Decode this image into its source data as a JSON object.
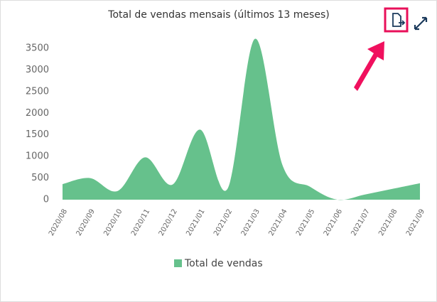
{
  "chart_data": {
    "type": "area",
    "title": "Total de vendas mensais (últimos 13 meses)",
    "categories": [
      "2020/08",
      "2020/09",
      "2020/10",
      "2020/11",
      "2020/12",
      "2021/01",
      "2021/02",
      "2021/03",
      "2021/04",
      "2021/05",
      "2021/06",
      "2021/07",
      "2021/08",
      "2021/09"
    ],
    "series": [
      {
        "name": "Total de vendas",
        "color": "#66c18c",
        "values": [
          360,
          500,
          200,
          980,
          350,
          1620,
          250,
          3720,
          800,
          300,
          0,
          120,
          250,
          380
        ]
      }
    ],
    "ylim": [
      0,
      3500
    ],
    "yticks": [
      0,
      500,
      1000,
      1500,
      2000,
      2500,
      3000,
      3500
    ],
    "grid": false,
    "legend": "bottom"
  }
}
